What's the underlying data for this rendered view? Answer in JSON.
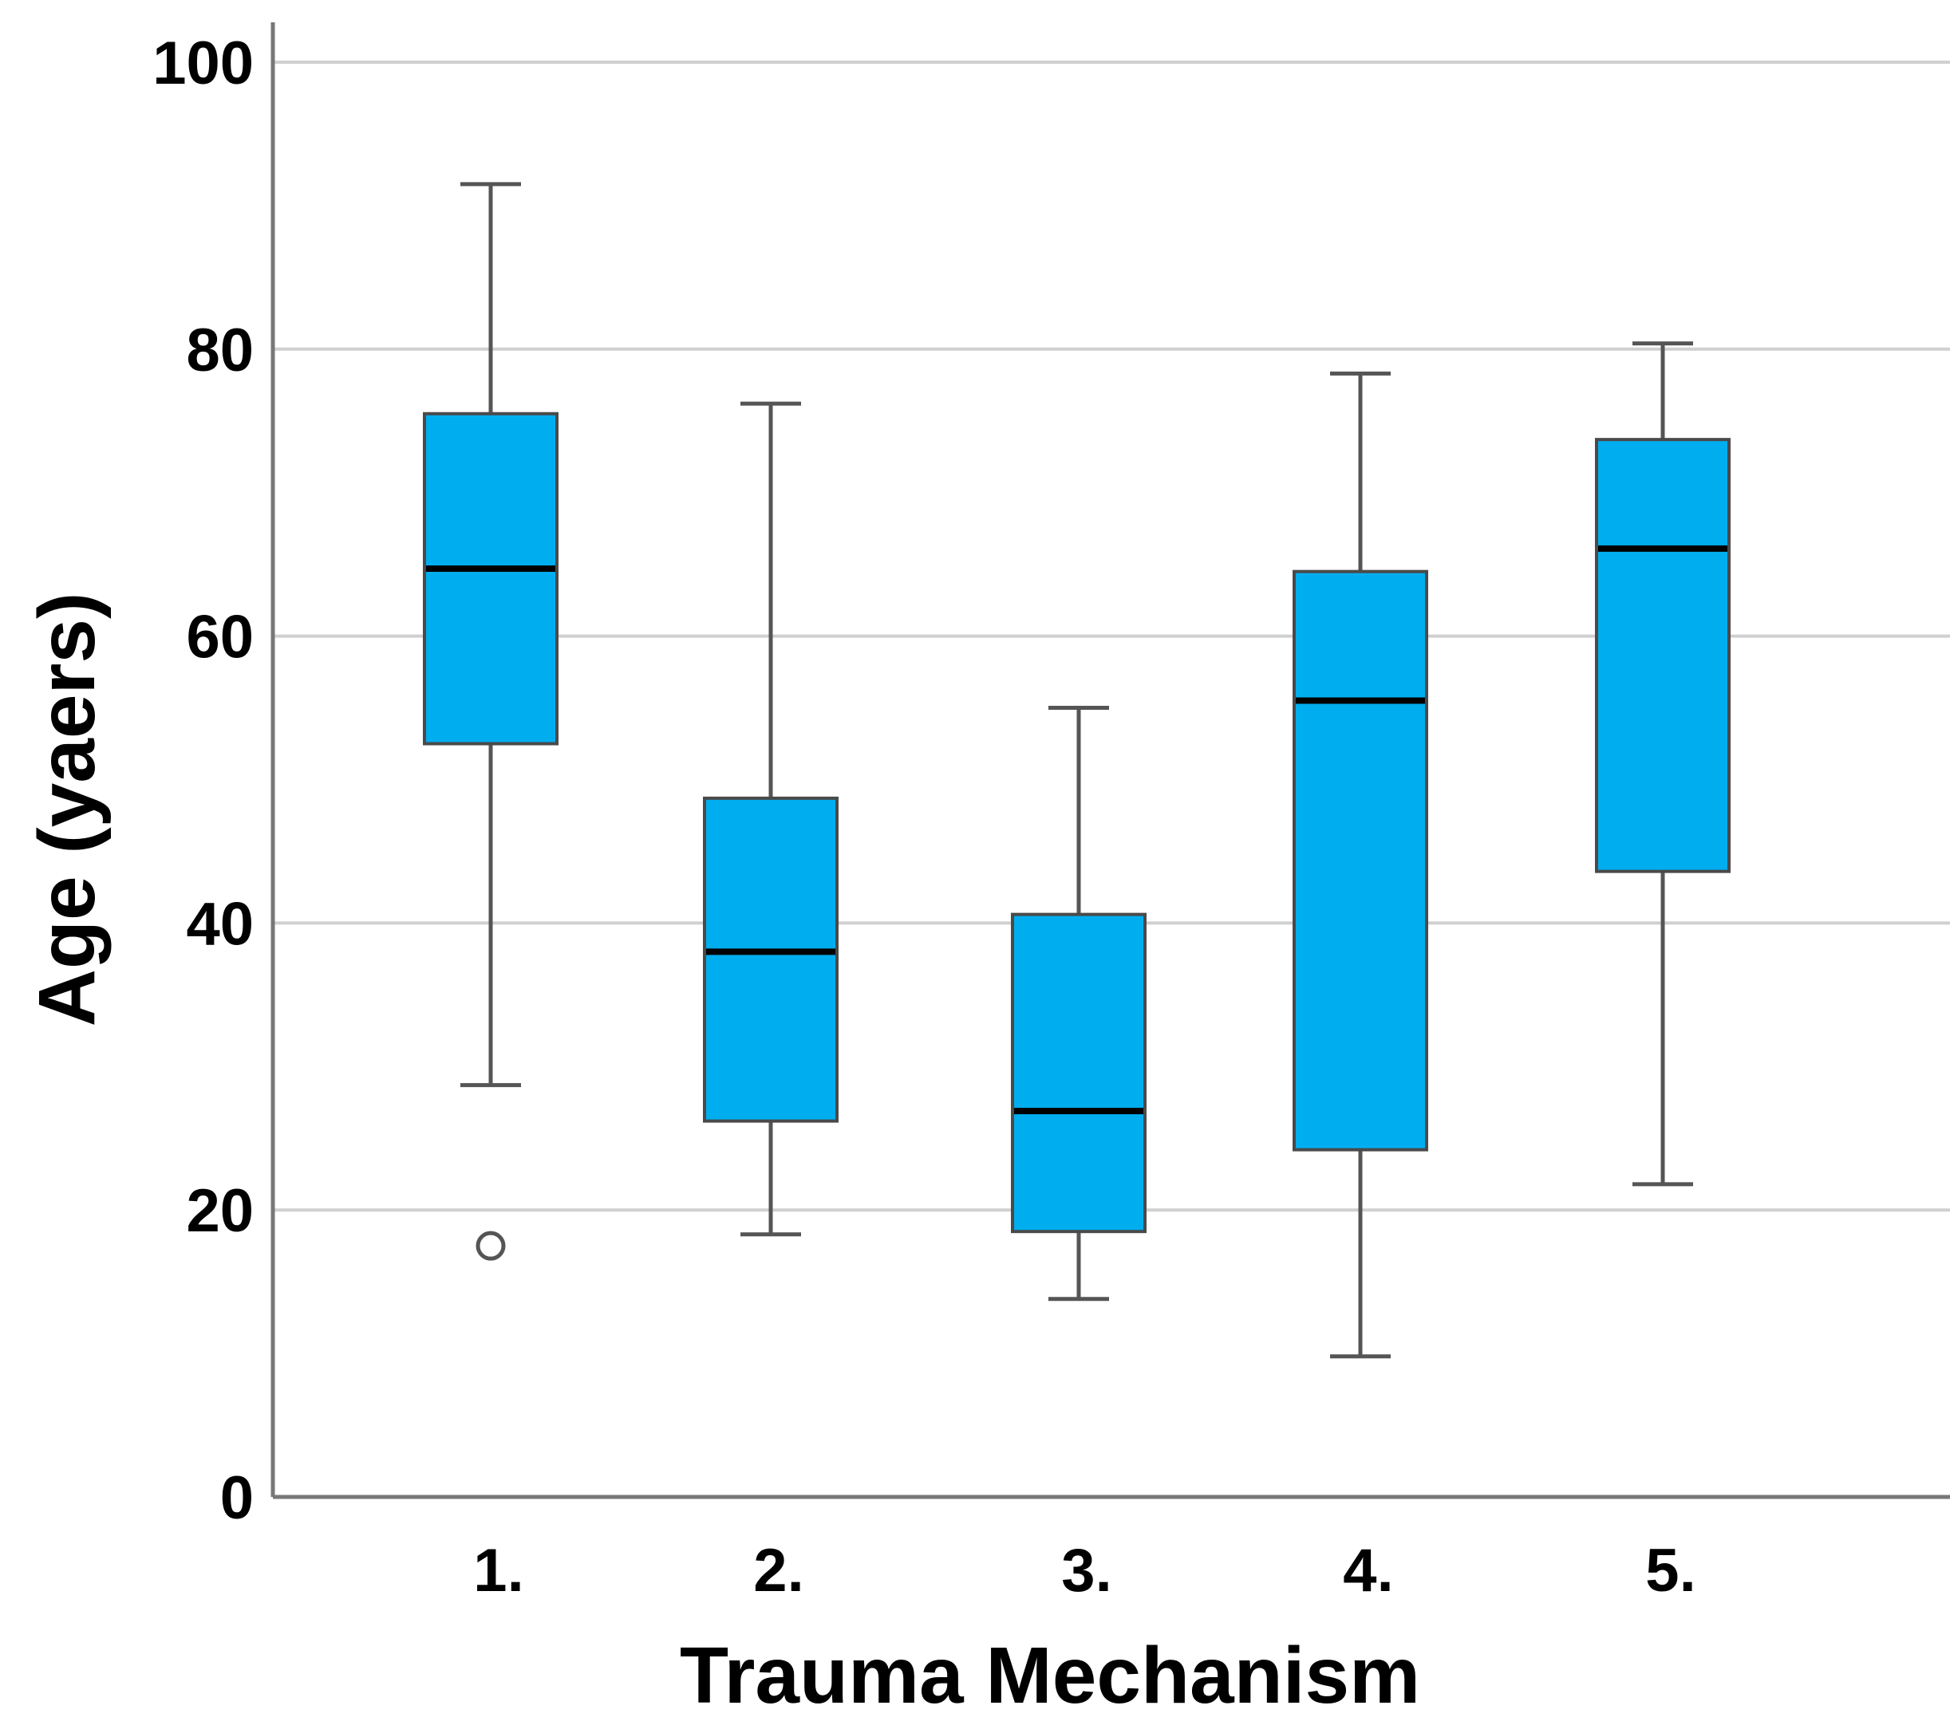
{
  "chart_data": {
    "type": "box",
    "title": "",
    "xlabel": "Trauma Mechanism",
    "ylabel": "Age (yaers)",
    "ylim": [
      0,
      100
    ],
    "yticks": [
      0,
      20,
      40,
      60,
      80,
      100
    ],
    "grid": true,
    "colors": {
      "box_fill": "#00AEEF",
      "box_edge": "#4A4A4A",
      "median": "#000000",
      "whisker": "#555555",
      "grid": "#D0D0D0",
      "axis": "#777777"
    },
    "categories": [
      "1.",
      "2.",
      "3.",
      "4.",
      "5."
    ],
    "boxes": [
      {
        "category": "1.",
        "whisker_low": 28.7,
        "q1": 52.5,
        "median": 64.7,
        "q3": 75.5,
        "whisker_high": 91.5,
        "outliers": [
          17.5
        ]
      },
      {
        "category": "2.",
        "whisker_low": 18.3,
        "q1": 26.2,
        "median": 38.0,
        "q3": 48.7,
        "whisker_high": 76.2,
        "outliers": []
      },
      {
        "category": "3.",
        "whisker_low": 13.8,
        "q1": 18.5,
        "median": 26.9,
        "q3": 40.6,
        "whisker_high": 55.0,
        "outliers": []
      },
      {
        "category": "4.",
        "whisker_low": 9.8,
        "q1": 24.2,
        "median": 55.5,
        "q3": 64.5,
        "whisker_high": 78.3,
        "outliers": []
      },
      {
        "category": "5.",
        "whisker_low": 21.8,
        "q1": 43.6,
        "median": 66.1,
        "q3": 73.7,
        "whisker_high": 80.4,
        "outliers": []
      }
    ]
  }
}
